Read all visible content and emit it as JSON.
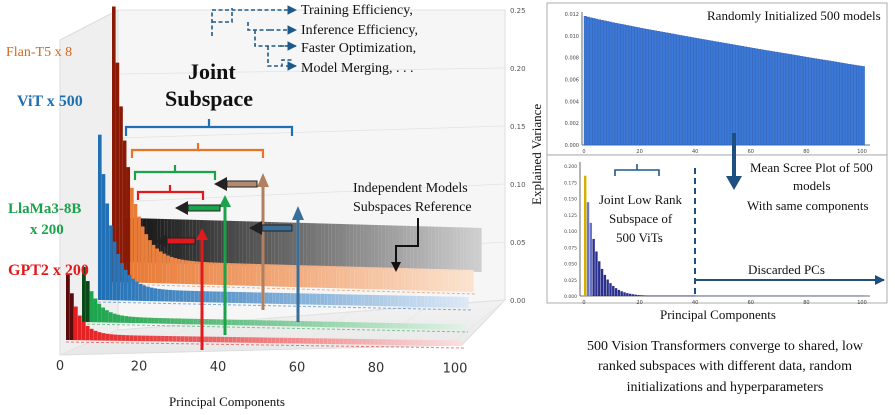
{
  "left_figure": {
    "series_labels": {
      "flan": "Flan-T5 x 8",
      "vit": "ViT x 500",
      "llama_line1": "LlaMa3-8B",
      "llama_line2": "x 200",
      "gpt2": "GPT2 x 200"
    },
    "joint_line1": "Joint",
    "joint_line2": "Subspace",
    "benefits": [
      "Training Efficiency,",
      "Inference Efficiency,",
      "Faster Optimization,",
      "Model Merging, . . ."
    ],
    "independent_line1": "Independent Models",
    "independent_line2": "Subspaces Reference",
    "xlabel": "Principal Components",
    "colors": {
      "flan": "#d2691e",
      "vit": "#1f6fb5",
      "llama": "#1aa34a",
      "gpt2": "#e31a1c",
      "independent": "#111111"
    }
  },
  "right_figure": {
    "top_title": "Randomly Initialized 500 models",
    "ylabel": "Explained Variance",
    "arrow_label_line1": "Mean Scree Plot of 500",
    "arrow_label_line2": "models",
    "arrow_label_line3": "With same components",
    "joint_line1": "Joint Low Rank",
    "joint_line2": "Subspace of",
    "joint_line3": "500 ViTs",
    "discarded": "Discarded PCs",
    "xlabel": "Principal Components"
  },
  "caption": {
    "line1": "500 Vision Transformers converge to shared, low",
    "line2": "ranked subspaces with different data, random",
    "line3": "initializations and hyperparameters"
  },
  "chart_data": [
    {
      "type": "bar",
      "title": "",
      "xlabel": "Principal Components",
      "ylabel": "",
      "x_ticks": [
        0,
        20,
        40,
        60,
        80,
        100
      ],
      "z_ticks": [
        "0.00",
        "0.05",
        "0.10",
        "0.15",
        "0.20",
        "0.25"
      ],
      "zlim": [
        0,
        0.25
      ],
      "series": [
        {
          "name": "Flan-T5 x 8",
          "peak": 0.25,
          "tail": 0.02,
          "components": 100
        },
        {
          "name": "ViT x 500",
          "peak": 0.15,
          "tail": 0.01,
          "components": 100
        },
        {
          "name": "LlaMa3-8B x 200",
          "peak": 0.05,
          "tail": 0.005,
          "components": 100
        },
        {
          "name": "GPT2 x 200",
          "peak": 0.06,
          "tail": 0.005,
          "components": 100
        },
        {
          "name": "Independent Models Subspaces Reference",
          "peak": 0.04,
          "tail": 0.04,
          "components": 100
        }
      ]
    },
    {
      "type": "bar",
      "title": "Randomly Initialized 500 models",
      "xlabel": "",
      "ylabel": "Explained Variance",
      "x_ticks": [
        0,
        20,
        40,
        60,
        80,
        100
      ],
      "y_ticks": [
        "0.000",
        "0.002",
        "0.004",
        "0.006",
        "0.008",
        "0.010",
        "0.012"
      ],
      "ylim": [
        0,
        0.012
      ],
      "series": [
        {
          "name": "Randomly Initialized 500 models",
          "start": 0.0118,
          "end": 0.0072,
          "components": 100
        }
      ]
    },
    {
      "type": "bar",
      "title": "Mean Scree Plot of 500 models With same components",
      "xlabel": "Principal Components",
      "ylabel": "Explained Variance",
      "x_ticks": [
        0,
        20,
        40,
        60,
        80,
        100
      ],
      "y_ticks": [
        "0.000",
        "0.025",
        "0.050",
        "0.075",
        "0.100",
        "0.125",
        "0.150",
        "0.175",
        "0.200"
      ],
      "ylim": [
        0,
        0.2
      ],
      "cutoff": 40,
      "series": [
        {
          "name": "Mean Scree",
          "first": 0.185,
          "decay": 0.78,
          "components": 100
        }
      ]
    }
  ]
}
